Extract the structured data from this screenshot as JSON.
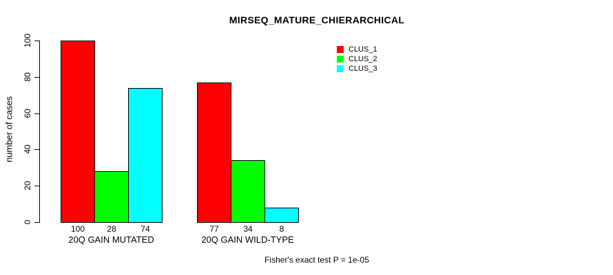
{
  "figure": {
    "title": "MIRSEQ_MATURE_CHIERARCHICAL",
    "ylabel": "number of cases",
    "caption": "Fisher's exact test P = 1e-05"
  },
  "chart_data": {
    "type": "bar",
    "grouped": true,
    "title": "MIRSEQ_MATURE_CHIERARCHICAL",
    "xlabel": "",
    "ylabel": "number of cases",
    "categories": [
      "20Q GAIN MUTATED",
      "20Q GAIN WILD-TYPE"
    ],
    "series": [
      {
        "name": "CLUS_1",
        "color": "#ff0000",
        "values": [
          100,
          77
        ]
      },
      {
        "name": "CLUS_2",
        "color": "#00ff00",
        "values": [
          28,
          34
        ]
      },
      {
        "name": "CLUS_3",
        "color": "#00ffff",
        "values": [
          74,
          8
        ]
      }
    ],
    "bar_value_labels": [
      [
        "100",
        "28",
        "74"
      ],
      [
        "77",
        "34",
        "8"
      ]
    ],
    "yticks": [
      0,
      20,
      40,
      60,
      80,
      100
    ],
    "ylim": [
      0,
      100
    ],
    "grid": false,
    "legend_position": "top-right",
    "bar_border_color": "#000000",
    "annotation": "Fisher's exact test P = 1e-05"
  }
}
